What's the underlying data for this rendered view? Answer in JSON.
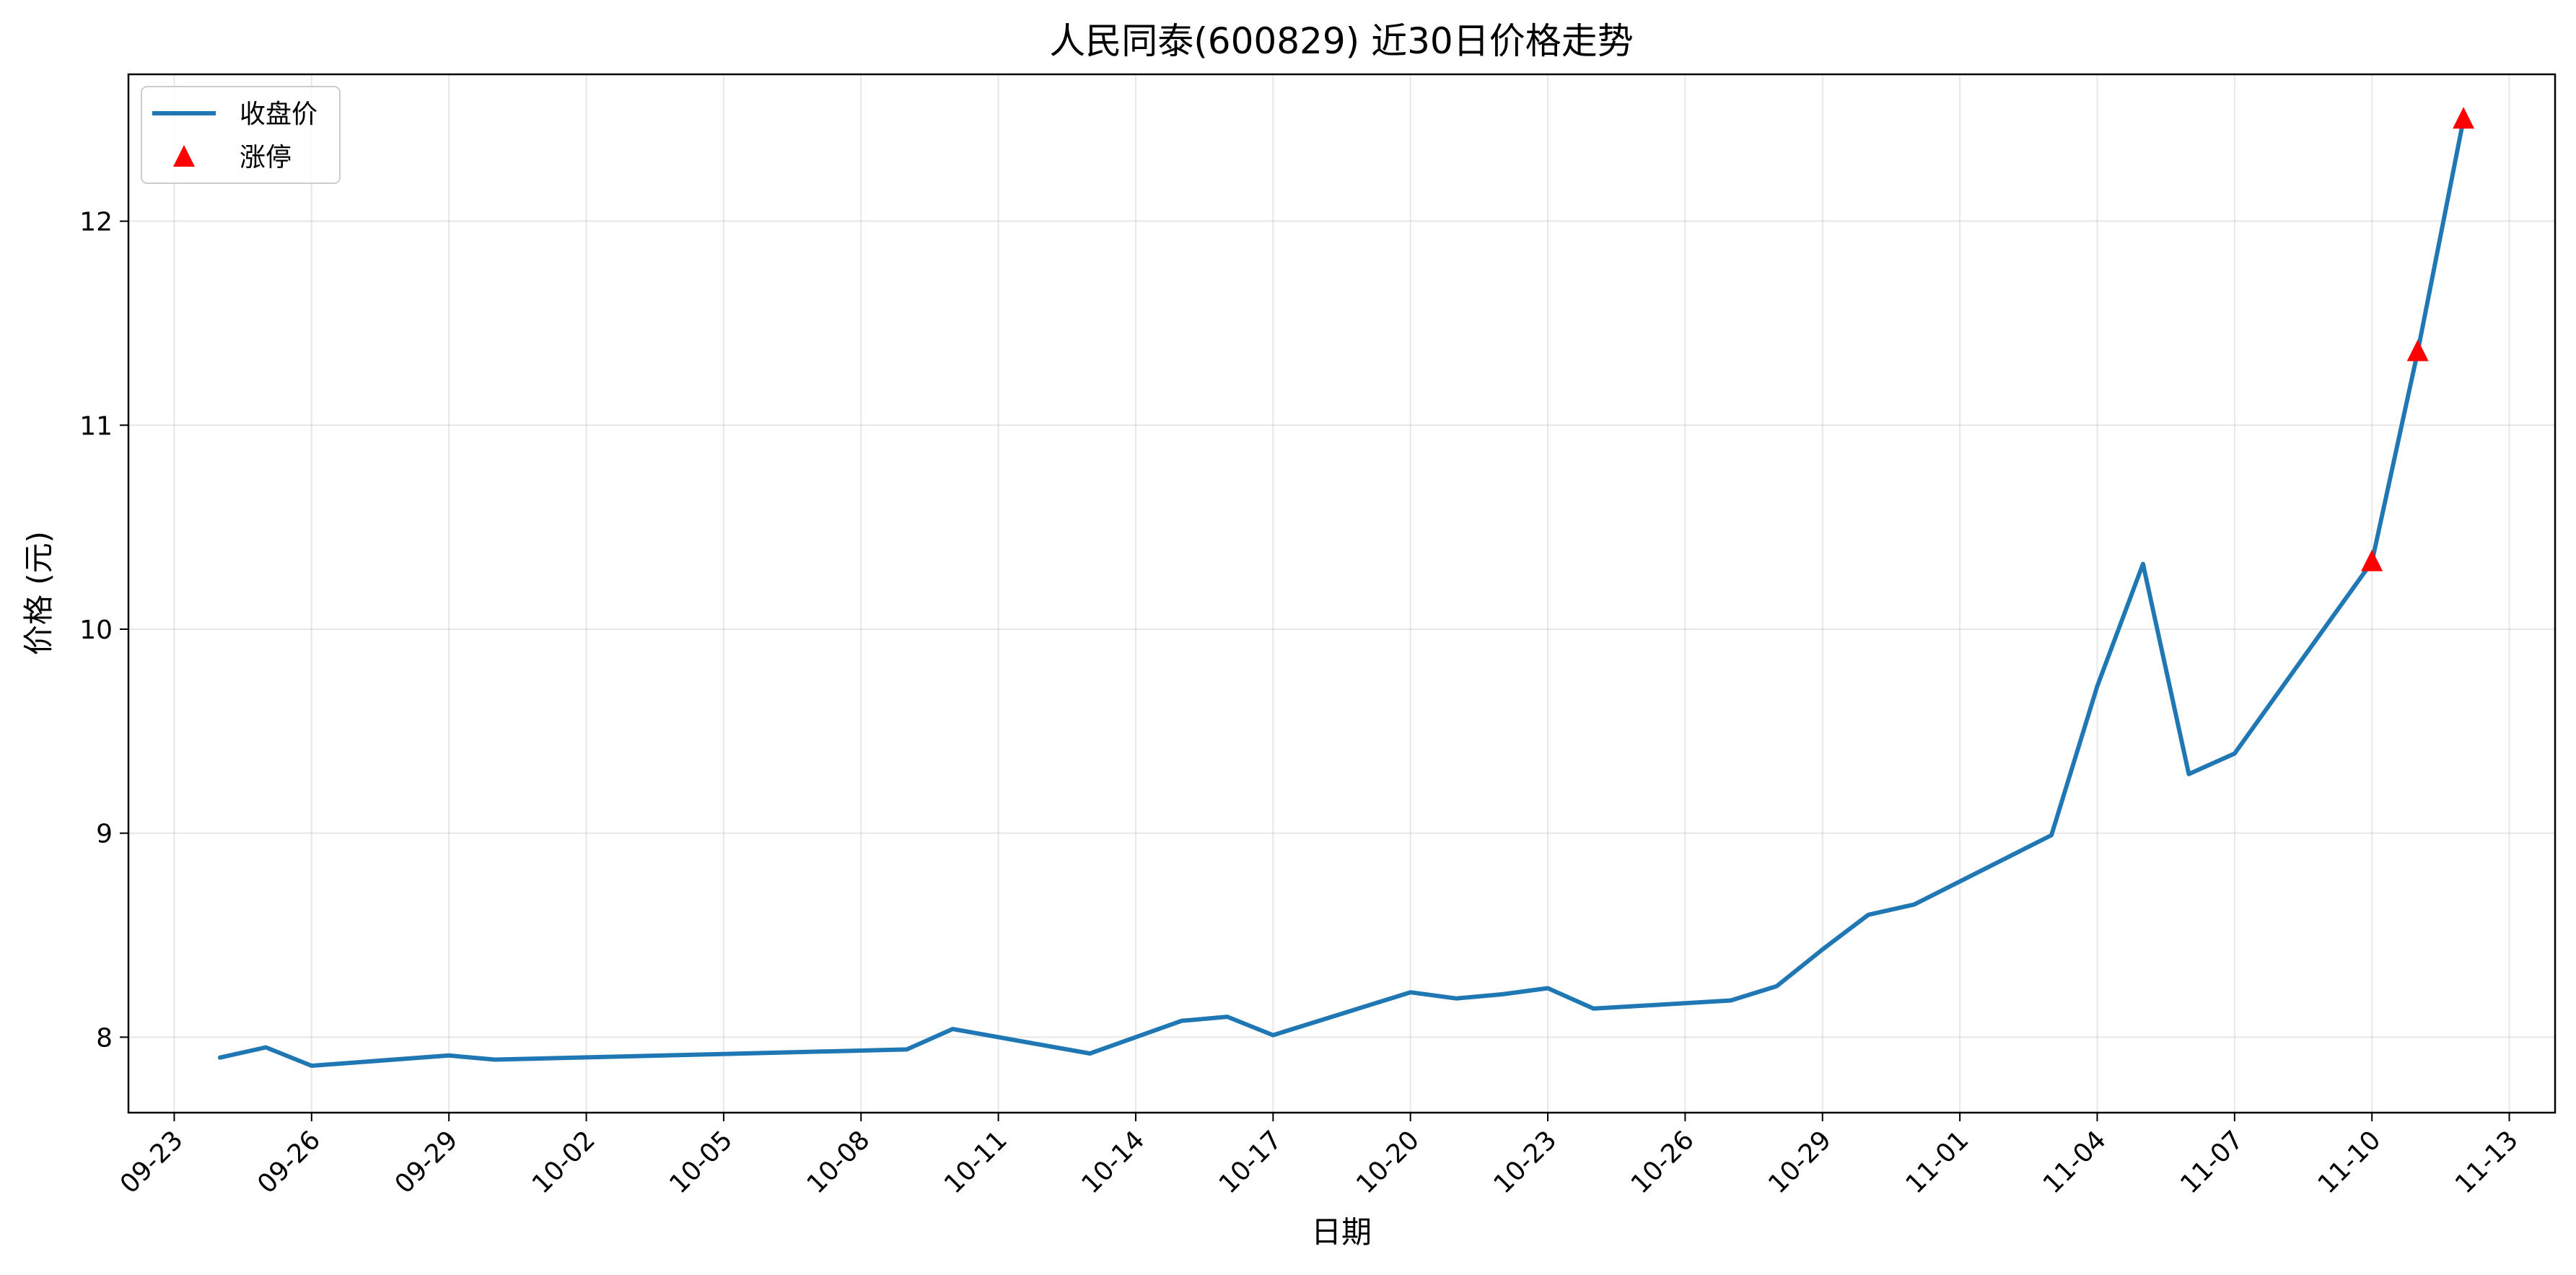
{
  "chart_data": {
    "type": "line",
    "title": "人民同泰(600829) 近30日价格走势",
    "xlabel": "日期",
    "ylabel": "价格 (元)",
    "x_ticks": [
      "09-23",
      "09-26",
      "09-29",
      "10-02",
      "10-05",
      "10-08",
      "10-11",
      "10-14",
      "10-17",
      "10-20",
      "10-23",
      "10-26",
      "10-29",
      "11-01",
      "11-04",
      "11-07",
      "11-10",
      "11-13"
    ],
    "y_ticks": [
      8,
      9,
      10,
      11,
      12
    ],
    "xlim": [
      "2025-09-22",
      "2025-11-14"
    ],
    "ylim": [
      7.63,
      12.72
    ],
    "grid": true,
    "legend_position": "top-left",
    "colors": {
      "line": "#1f77b4",
      "limit_up": "#ff0000"
    },
    "series": [
      {
        "name": "收盘价",
        "kind": "line",
        "points": [
          {
            "x": "2025-09-24",
            "y": 7.9
          },
          {
            "x": "2025-09-25",
            "y": 7.95
          },
          {
            "x": "2025-09-26",
            "y": 7.86
          },
          {
            "x": "2025-09-29",
            "y": 7.91
          },
          {
            "x": "2025-09-30",
            "y": 7.89
          },
          {
            "x": "2025-10-09",
            "y": 7.94
          },
          {
            "x": "2025-10-10",
            "y": 8.04
          },
          {
            "x": "2025-10-13",
            "y": 7.92
          },
          {
            "x": "2025-10-15",
            "y": 8.08
          },
          {
            "x": "2025-10-16",
            "y": 8.1
          },
          {
            "x": "2025-10-17",
            "y": 8.01
          },
          {
            "x": "2025-10-20",
            "y": 8.22
          },
          {
            "x": "2025-10-21",
            "y": 8.19
          },
          {
            "x": "2025-10-22",
            "y": 8.21
          },
          {
            "x": "2025-10-23",
            "y": 8.24
          },
          {
            "x": "2025-10-24",
            "y": 8.14
          },
          {
            "x": "2025-10-27",
            "y": 8.18
          },
          {
            "x": "2025-10-28",
            "y": 8.25
          },
          {
            "x": "2025-10-29",
            "y": 8.43
          },
          {
            "x": "2025-10-30",
            "y": 8.6
          },
          {
            "x": "2025-10-31",
            "y": 8.65
          },
          {
            "x": "2025-11-03",
            "y": 8.99
          },
          {
            "x": "2025-11-04",
            "y": 9.72
          },
          {
            "x": "2025-11-05",
            "y": 10.32
          },
          {
            "x": "2025-11-06",
            "y": 9.29
          },
          {
            "x": "2025-11-07",
            "y": 9.39
          },
          {
            "x": "2025-11-10",
            "y": 10.33
          },
          {
            "x": "2025-11-11",
            "y": 11.36
          },
          {
            "x": "2025-11-12",
            "y": 12.5
          }
        ]
      },
      {
        "name": "涨停",
        "kind": "scatter",
        "marker": "triangle",
        "points": [
          {
            "x": "2025-11-10",
            "y": 10.33
          },
          {
            "x": "2025-11-11",
            "y": 11.36
          },
          {
            "x": "2025-11-12",
            "y": 12.5
          }
        ]
      }
    ]
  }
}
